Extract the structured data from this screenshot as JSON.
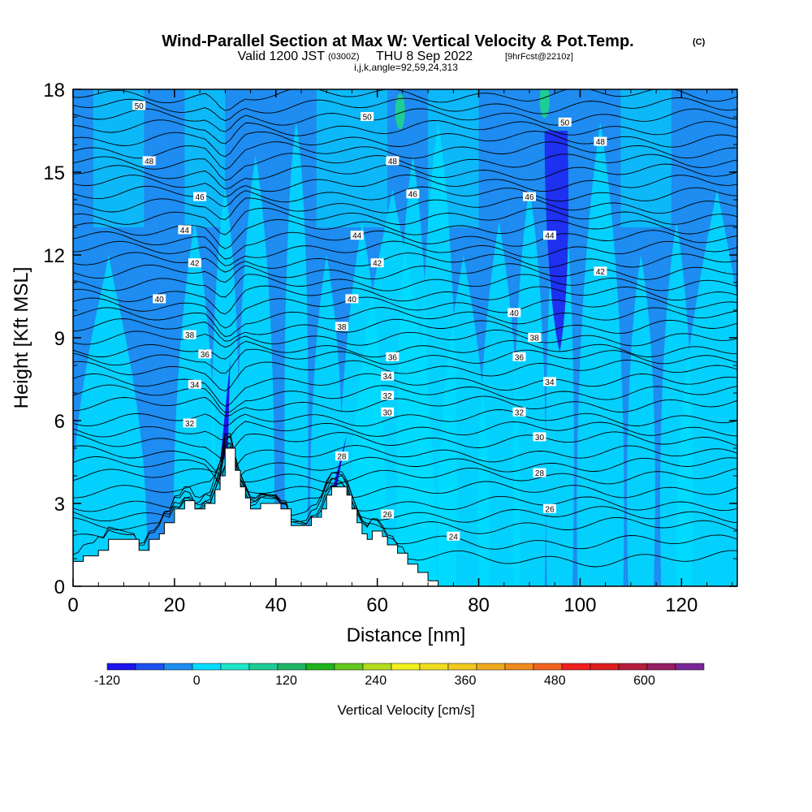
{
  "title": {
    "main": "Wind-Parallel Section at Max W: Vertical Velocity & Pot.Temp.",
    "copyright": "(C)",
    "valid_prefix": "Valid 1200 JST",
    "valid_utc": "(0300Z)",
    "valid_date": "THU 8 Sep 2022",
    "forecast": "[9hrFcst@2210z]",
    "indices": "i,j,k,angle=92,59,24,313"
  },
  "chart_data": {
    "type": "heatmap",
    "title": "Wind-Parallel Section at Max W: Vertical Velocity & Pot.Temp.",
    "xlabel": "Distance [nm]",
    "ylabel": "Height [Kft MSL]",
    "xlim": [
      0,
      131
    ],
    "ylim": [
      0,
      18
    ],
    "x_ticks": [
      "0",
      "20",
      "40",
      "60",
      "80",
      "100",
      "120"
    ],
    "y_ticks": [
      "0",
      "3",
      "6",
      "9",
      "12",
      "15",
      "18"
    ],
    "colorbar": {
      "label": "Vertical Velocity [cm/s]",
      "tick_labels": [
        "-120",
        "0",
        "120",
        "240",
        "360",
        "480",
        "600"
      ],
      "levels": [
        -120,
        -80,
        -40,
        0,
        40,
        80,
        120,
        160,
        200,
        240,
        280,
        320,
        360,
        400,
        440,
        480,
        520,
        560,
        600,
        640,
        680
      ],
      "colors": [
        "#1e14f0",
        "#1e50f0",
        "#1e8cf0",
        "#00dcff",
        "#1ee6c8",
        "#1ecc96",
        "#1eb464",
        "#1eb41e",
        "#64c81e",
        "#b4dc1e",
        "#f0f01e",
        "#f0dc1e",
        "#f0c81e",
        "#f0aa1e",
        "#f08c1e",
        "#f0641e",
        "#f01e1e",
        "#dc1e1e",
        "#b41e3c",
        "#961e64",
        "#782896"
      ]
    },
    "theta_contour_labels": [
      "24",
      "26",
      "28",
      "30",
      "32",
      "34",
      "36",
      "38",
      "40",
      "42",
      "44",
      "46",
      "48",
      "50"
    ],
    "terrain_profile": [
      [
        0,
        0.6
      ],
      [
        0,
        0.9
      ],
      [
        2,
        0.9
      ],
      [
        2,
        1.1
      ],
      [
        5,
        1.1
      ],
      [
        5,
        1.3
      ],
      [
        7,
        1.3
      ],
      [
        7,
        1.7
      ],
      [
        13,
        1.7
      ],
      [
        13,
        1.3
      ],
      [
        15,
        1.3
      ],
      [
        15,
        1.7
      ],
      [
        17,
        1.7
      ],
      [
        17,
        1.9
      ],
      [
        18,
        1.9
      ],
      [
        18,
        2.3
      ],
      [
        20,
        2.3
      ],
      [
        20,
        2.8
      ],
      [
        22,
        2.8
      ],
      [
        22,
        3.1
      ],
      [
        24,
        3.1
      ],
      [
        24,
        2.8
      ],
      [
        26,
        2.8
      ],
      [
        26,
        3.0
      ],
      [
        28,
        3.0
      ],
      [
        28,
        3.5
      ],
      [
        29,
        3.5
      ],
      [
        29,
        4.0
      ],
      [
        30,
        4.0
      ],
      [
        30,
        5.0
      ],
      [
        32,
        5.0
      ],
      [
        32,
        4.2
      ],
      [
        33,
        4.2
      ],
      [
        33,
        3.6
      ],
      [
        34,
        3.6
      ],
      [
        34,
        3.2
      ],
      [
        35,
        3.2
      ],
      [
        35,
        2.8
      ],
      [
        37,
        2.8
      ],
      [
        37,
        3.0
      ],
      [
        41,
        3.0
      ],
      [
        41,
        2.8
      ],
      [
        43,
        2.8
      ],
      [
        43,
        2.2
      ],
      [
        47,
        2.2
      ],
      [
        47,
        2.5
      ],
      [
        49,
        2.5
      ],
      [
        49,
        2.8
      ],
      [
        50,
        2.8
      ],
      [
        50,
        3.3
      ],
      [
        51,
        3.3
      ],
      [
        51,
        3.6
      ],
      [
        54,
        3.6
      ],
      [
        54,
        3.3
      ],
      [
        55,
        3.3
      ],
      [
        55,
        2.8
      ],
      [
        56,
        2.8
      ],
      [
        56,
        2.3
      ],
      [
        57,
        2.3
      ],
      [
        57,
        1.9
      ],
      [
        58,
        1.9
      ],
      [
        58,
        1.7
      ],
      [
        59,
        1.7
      ],
      [
        59,
        2.0
      ],
      [
        61,
        2.0
      ],
      [
        61,
        1.8
      ],
      [
        62,
        1.8
      ],
      [
        62,
        1.5
      ],
      [
        64,
        1.5
      ],
      [
        64,
        1.2
      ],
      [
        66,
        1.2
      ],
      [
        66,
        0.8
      ],
      [
        68,
        0.8
      ],
      [
        68,
        0.5
      ],
      [
        70,
        0.5
      ],
      [
        70,
        0.2
      ],
      [
        72,
        0.2
      ],
      [
        72,
        0
      ]
    ],
    "theta_contour_base_heights": [
      1.0,
      1.6,
      2.2,
      2.6,
      3.0,
      3.5,
      4.0,
      4.4,
      4.8,
      5.3,
      5.7,
      6.1,
      6.6,
      7.0,
      7.4,
      7.9,
      8.3,
      8.6,
      9.0,
      9.4,
      9.8,
      10.2,
      10.6,
      11.0,
      11.4,
      11.8,
      12.2,
      12.6,
      13.0,
      13.4,
      13.8,
      14.2,
      14.6,
      15.0,
      15.4,
      15.8,
      16.2,
      16.6,
      17.0,
      17.4,
      17.8
    ],
    "updraft_plumes": [
      [
        7,
        15
      ],
      [
        24,
        8
      ],
      [
        30,
        5
      ],
      [
        36,
        7
      ],
      [
        44,
        4
      ],
      [
        50,
        6
      ],
      [
        57,
        9
      ],
      [
        63,
        17
      ],
      [
        67,
        6
      ],
      [
        72,
        7
      ],
      [
        77,
        10
      ],
      [
        84,
        8
      ],
      [
        90,
        6
      ],
      [
        96,
        5
      ],
      [
        104,
        9
      ],
      [
        112,
        5
      ],
      [
        119,
        6
      ],
      [
        127,
        16
      ]
    ],
    "downdraft_core": {
      "x": 96,
      "y_range": [
        8.5,
        16.5
      ],
      "value": -120
    }
  }
}
